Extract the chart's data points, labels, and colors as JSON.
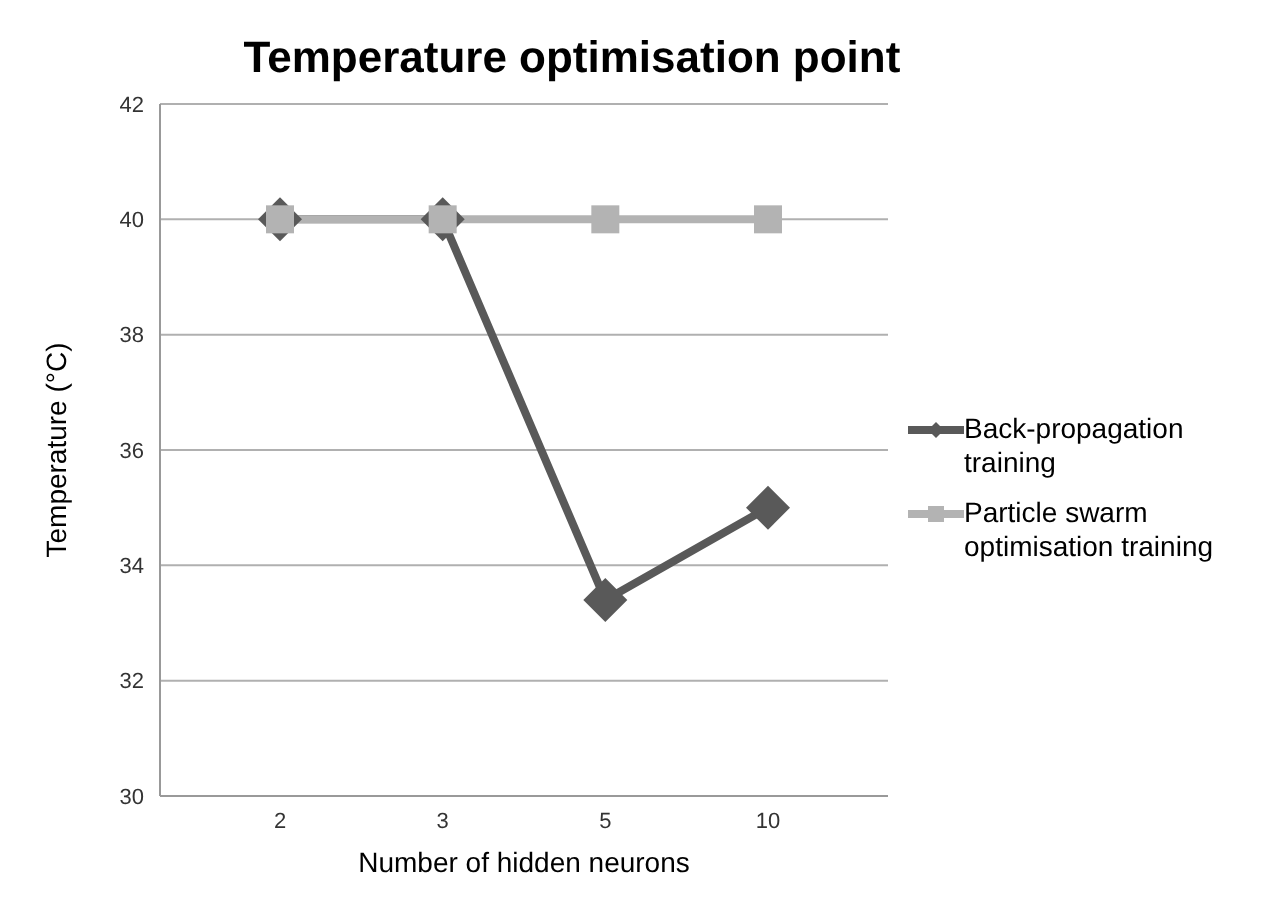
{
  "chart_data": {
    "type": "line",
    "title": "Temperature optimisation point",
    "xlabel": "Number of hidden neurons",
    "ylabel": "Temperature  (°C)",
    "categories": [
      "2",
      "3",
      "5",
      "10"
    ],
    "series": [
      {
        "name": "Back-propagation training",
        "color": "#595959",
        "values": [
          40,
          40,
          33.4,
          35
        ],
        "marker": "diamond"
      },
      {
        "name": "Particle swarm optimisation training",
        "color": "#b3b3b3",
        "values": [
          40,
          40,
          40,
          40
        ],
        "marker": "square"
      }
    ],
    "ylim": [
      30,
      42
    ],
    "yticks": [
      30,
      32,
      34,
      36,
      38,
      40,
      42
    ],
    "grid": "y",
    "legend": "right",
    "line_style": "solid"
  }
}
